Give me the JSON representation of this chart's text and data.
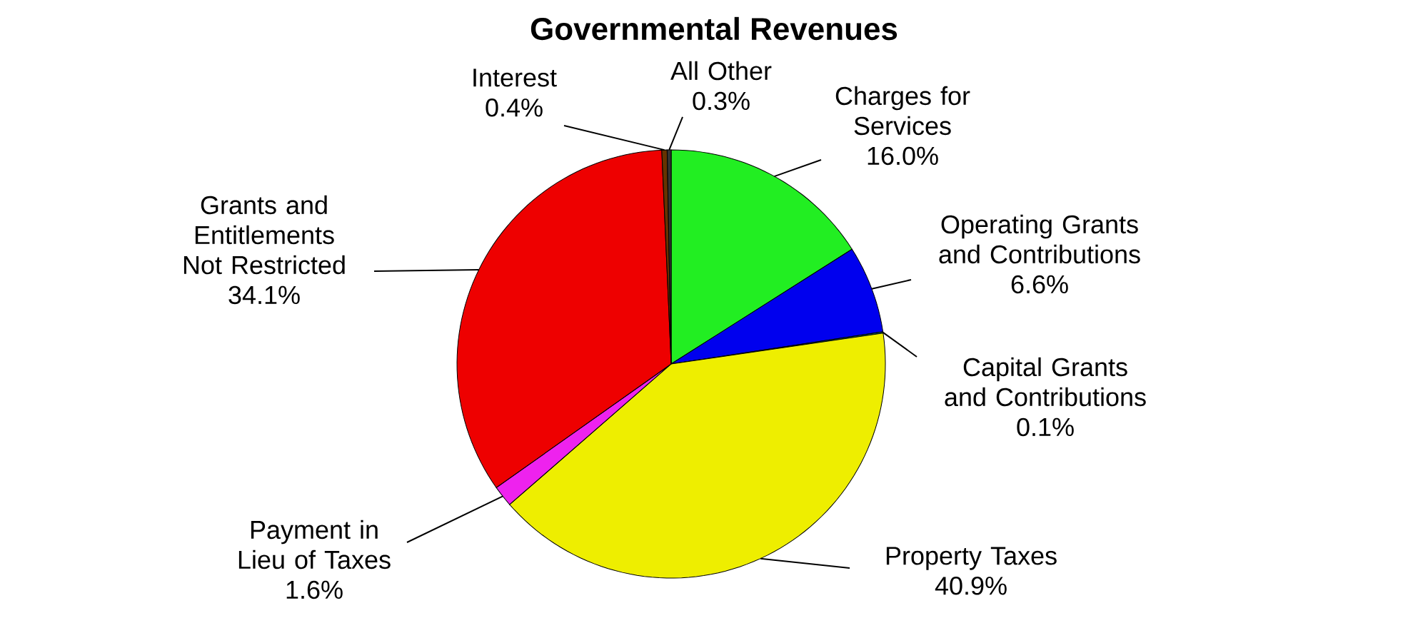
{
  "chart_data": {
    "type": "pie",
    "title": "Governmental Revenues",
    "categories": [
      "Charges for Services",
      "Operating Grants and Contributions",
      "Capital Grants and Contributions",
      "Property Taxes",
      "Payment in Lieu of Taxes",
      "Grants and Entitlements Not Restricted",
      "Interest",
      "All Other"
    ],
    "values": [
      16.0,
      6.6,
      0.1,
      40.9,
      1.6,
      34.1,
      0.4,
      0.3
    ],
    "value_labels": [
      "16.0%",
      "6.6%",
      "0.1%",
      "40.9%",
      "1.6%",
      "34.1%",
      "0.4%",
      "0.3%"
    ],
    "colors": [
      "#22ee22",
      "#0000ee",
      "#008888",
      "#eeee00",
      "#ee22ee",
      "#ee0000",
      "#663300",
      "#333333"
    ]
  }
}
